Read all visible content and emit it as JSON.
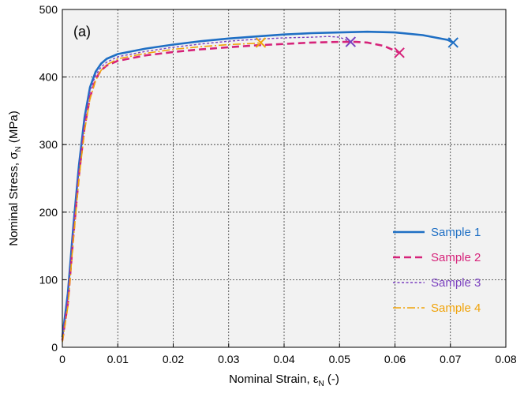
{
  "chart_data": {
    "type": "line",
    "panel_label": "(a)",
    "xlabel": {
      "pre": "Nominal Strain, ",
      "sym": "ε",
      "sub": "N",
      "post": " (-)"
    },
    "ylabel": {
      "pre": "Nominal Stress, ",
      "sym": "σ",
      "sub": "N",
      "post": " (MPa)"
    },
    "xlim": [
      0,
      0.08
    ],
    "ylim": [
      0,
      500
    ],
    "xticks": [
      0,
      0.01,
      0.02,
      0.03,
      0.04,
      0.05,
      0.06,
      0.07,
      0.08
    ],
    "xtick_labels": [
      "0",
      "0.01",
      "0.02",
      "0.03",
      "0.04",
      "0.05",
      "0.06",
      "0.07",
      "0.08"
    ],
    "yticks": [
      0,
      100,
      200,
      300,
      400,
      500
    ],
    "ytick_labels": [
      "0",
      "100",
      "200",
      "300",
      "400",
      "500"
    ],
    "grid": true,
    "legend_position": "lower-right",
    "series": [
      {
        "name": "Sample 1",
        "color": "#1f6fc4",
        "dash": "solid",
        "points": [
          [
            0,
            15
          ],
          [
            0.001,
            80
          ],
          [
            0.002,
            180
          ],
          [
            0.003,
            270
          ],
          [
            0.004,
            340
          ],
          [
            0.005,
            385
          ],
          [
            0.006,
            408
          ],
          [
            0.007,
            420
          ],
          [
            0.008,
            427
          ],
          [
            0.01,
            434
          ],
          [
            0.015,
            442
          ],
          [
            0.02,
            448
          ],
          [
            0.025,
            453
          ],
          [
            0.03,
            457
          ],
          [
            0.035,
            460
          ],
          [
            0.04,
            463
          ],
          [
            0.045,
            465
          ],
          [
            0.05,
            466
          ],
          [
            0.055,
            467
          ],
          [
            0.06,
            466
          ],
          [
            0.065,
            462
          ],
          [
            0.0695,
            455
          ],
          [
            0.0705,
            451
          ]
        ],
        "fracture": [
          0.0705,
          451
        ]
      },
      {
        "name": "Sample 2",
        "color": "#d6237a",
        "dash": "dashed",
        "points": [
          [
            0,
            10
          ],
          [
            0.001,
            65
          ],
          [
            0.002,
            165
          ],
          [
            0.003,
            255
          ],
          [
            0.004,
            325
          ],
          [
            0.005,
            370
          ],
          [
            0.006,
            397
          ],
          [
            0.007,
            410
          ],
          [
            0.008,
            417
          ],
          [
            0.01,
            424
          ],
          [
            0.015,
            432
          ],
          [
            0.02,
            437
          ],
          [
            0.025,
            441
          ],
          [
            0.03,
            444
          ],
          [
            0.035,
            447
          ],
          [
            0.04,
            449
          ],
          [
            0.045,
            451
          ],
          [
            0.05,
            452
          ],
          [
            0.053,
            452
          ],
          [
            0.055,
            451
          ],
          [
            0.058,
            446
          ],
          [
            0.0608,
            436
          ]
        ],
        "fracture": [
          0.0608,
          436
        ]
      },
      {
        "name": "Sample 3",
        "color": "#7a3fbf",
        "dash": "dotted",
        "points": [
          [
            0,
            12
          ],
          [
            0.001,
            75
          ],
          [
            0.002,
            175
          ],
          [
            0.003,
            265
          ],
          [
            0.004,
            335
          ],
          [
            0.005,
            380
          ],
          [
            0.006,
            403
          ],
          [
            0.007,
            415
          ],
          [
            0.008,
            422
          ],
          [
            0.01,
            430
          ],
          [
            0.015,
            438
          ],
          [
            0.02,
            444
          ],
          [
            0.025,
            449
          ],
          [
            0.03,
            453
          ],
          [
            0.035,
            456
          ],
          [
            0.04,
            458
          ],
          [
            0.045,
            459
          ],
          [
            0.048,
            460
          ],
          [
            0.05,
            459
          ],
          [
            0.052,
            452
          ]
        ],
        "fracture": [
          0.052,
          452
        ]
      },
      {
        "name": "Sample 4",
        "color": "#f0a30a",
        "dash": "dashdot",
        "points": [
          [
            0,
            8
          ],
          [
            0.001,
            60
          ],
          [
            0.002,
            160
          ],
          [
            0.003,
            250
          ],
          [
            0.004,
            320
          ],
          [
            0.005,
            368
          ],
          [
            0.006,
            395
          ],
          [
            0.007,
            410
          ],
          [
            0.008,
            418
          ],
          [
            0.01,
            427
          ],
          [
            0.015,
            435
          ],
          [
            0.02,
            441
          ],
          [
            0.025,
            445
          ],
          [
            0.03,
            448
          ],
          [
            0.035,
            450
          ],
          [
            0.0358,
            451
          ]
        ],
        "fracture": [
          0.0358,
          451
        ]
      }
    ]
  }
}
